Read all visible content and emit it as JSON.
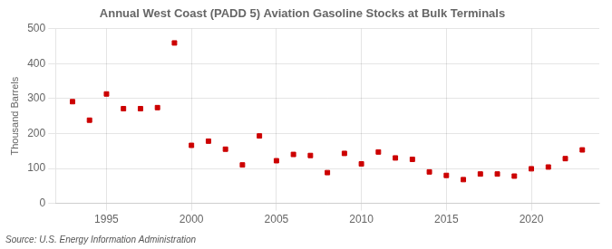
{
  "chart_data": {
    "type": "scatter",
    "title": "Annual West Coast (PADD 5) Aviation Gasoline Stocks at Bulk Terminals",
    "ylabel": "Thousand Barrels",
    "annotation": "Source: U.S. Energy Information Administration",
    "x": [
      1993,
      1994,
      1995,
      1996,
      1997,
      1998,
      1999,
      2000,
      2001,
      2002,
      2003,
      2004,
      2005,
      2006,
      2007,
      2008,
      2009,
      2010,
      2011,
      2012,
      2013,
      2014,
      2015,
      2016,
      2017,
      2018,
      2019,
      2020,
      2021,
      2022,
      2023
    ],
    "values": [
      291,
      238,
      313,
      271,
      271,
      274,
      459,
      166,
      178,
      155,
      110,
      193,
      122,
      140,
      137,
      88,
      143,
      113,
      147,
      130,
      126,
      90,
      80,
      68,
      84,
      84,
      78,
      99,
      104,
      128,
      153
    ],
    "color": "#cc0000",
    "marker": "square",
    "xlim": [
      1992,
      2024
    ],
    "ylim": [
      0,
      500
    ],
    "xticks": [
      1995,
      2000,
      2005,
      2010,
      2015,
      2020
    ],
    "yticks": [
      0,
      100,
      200,
      300,
      400,
      500
    ],
    "grid": true
  }
}
